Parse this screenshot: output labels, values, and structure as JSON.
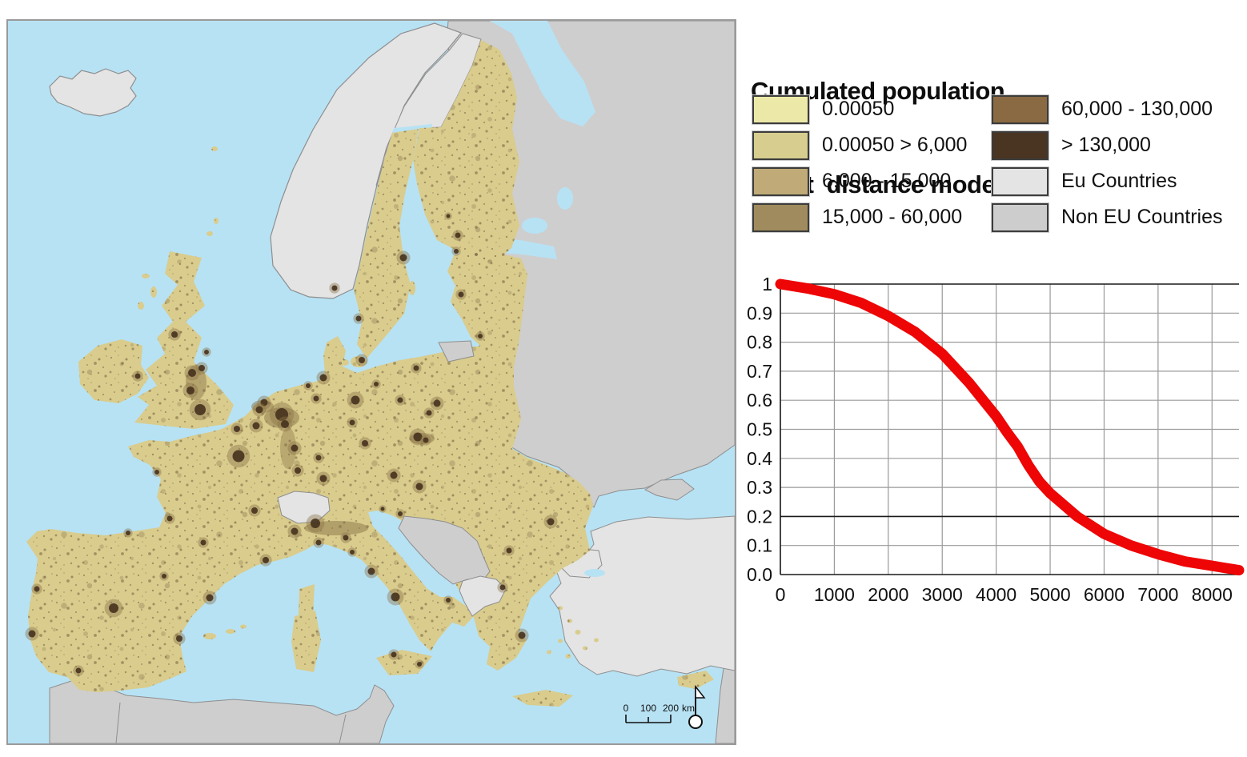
{
  "title": {
    "line1": "Cumulated population",
    "line2": "Short  distance model"
  },
  "legend": {
    "column1": [
      {
        "label": "0.00050",
        "color": "#ece9a8"
      },
      {
        "label": "0.00050 > 6,000",
        "color": "#d6cd8f"
      },
      {
        "label": "6,000 - 15,000",
        "color": "#bfaa78"
      },
      {
        "label": "15,000 - 60,000",
        "color": "#a08b5e"
      }
    ],
    "column2": [
      {
        "label": "60,000 - 130,000",
        "color": "#8a6a42"
      },
      {
        "label": "> 130,000",
        "color": "#4a3422"
      },
      {
        "label": "Eu Countries",
        "color": "#e4e4e4"
      },
      {
        "label": "Non EU Countries",
        "color": "#cdcdcd"
      }
    ]
  },
  "map": {
    "scale_bar": {
      "tick_labels": [
        "0",
        "100",
        "200"
      ],
      "unit": "km"
    },
    "colors": {
      "sea": "#b7e2f4",
      "eu_population_base": "#d9cc8d",
      "eu_country": "#e4e4e4",
      "non_eu_country": "#cecece",
      "country_border": "#8e8e8e",
      "population_speckle": "#6b5637",
      "city_core": "#483420",
      "city_halo": "#8a7347"
    }
  },
  "chart_data": {
    "type": "line",
    "title": "",
    "xlabel": "",
    "ylabel": "",
    "xlim": [
      0,
      8500
    ],
    "ylim": [
      0.0,
      1.0
    ],
    "grid": true,
    "line_color": "#ee0505",
    "line_width": 13,
    "x": [
      0,
      500,
      1000,
      1500,
      2000,
      2500,
      3000,
      3500,
      4000,
      4200,
      4400,
      4600,
      4800,
      5000,
      5500,
      6000,
      6500,
      7000,
      7500,
      8000,
      8500
    ],
    "y": [
      1.0,
      0.985,
      0.965,
      0.935,
      0.89,
      0.835,
      0.76,
      0.66,
      0.545,
      0.49,
      0.44,
      0.375,
      0.32,
      0.28,
      0.2,
      0.14,
      0.1,
      0.07,
      0.045,
      0.03,
      0.015
    ],
    "x_ticks": [
      {
        "v": 0,
        "t": "0"
      },
      {
        "v": 1000,
        "t": "1000"
      },
      {
        "v": 2000,
        "t": "2000"
      },
      {
        "v": 3000,
        "t": "3000"
      },
      {
        "v": 4000,
        "t": "4000"
      },
      {
        "v": 5000,
        "t": "5000"
      },
      {
        "v": 6000,
        "t": "6000"
      },
      {
        "v": 7000,
        "t": "7000"
      },
      {
        "v": 8000,
        "t": "8000"
      }
    ],
    "y_ticks": [
      {
        "v": 1.0,
        "t": "1"
      },
      {
        "v": 0.9,
        "t": "0.9"
      },
      {
        "v": 0.8,
        "t": "0.8"
      },
      {
        "v": 0.7,
        "t": "0.7"
      },
      {
        "v": 0.6,
        "t": "0.6"
      },
      {
        "v": 0.5,
        "t": "0.5"
      },
      {
        "v": 0.4,
        "t": "0.4"
      },
      {
        "v": 0.3,
        "t": "0.3"
      },
      {
        "v": 0.2,
        "t": "0.2"
      },
      {
        "v": 0.1,
        "t": "0.1"
      },
      {
        "v": 0.0,
        "t": "0.0"
      }
    ],
    "dark_gridlines_y": [
      1.0,
      0.2,
      0.0
    ]
  }
}
